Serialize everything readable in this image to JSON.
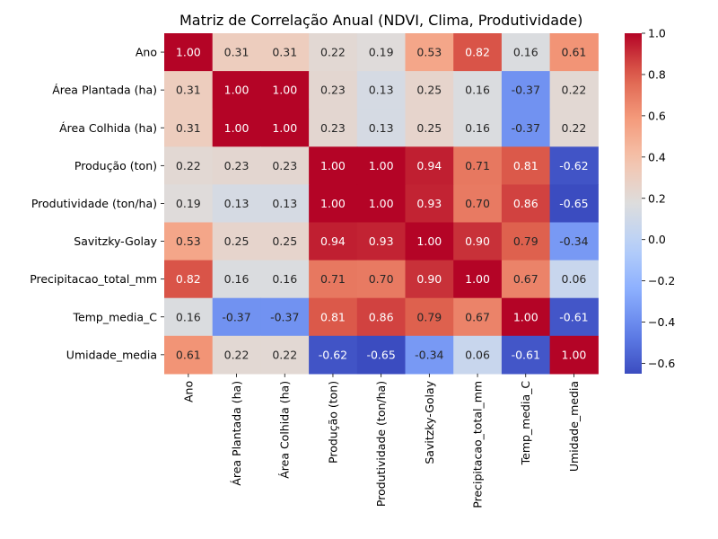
{
  "chart_data": {
    "type": "heatmap",
    "title": "Matriz de Correlação Anual (NDVI, Clima, Produtividade)",
    "row_labels": [
      "Ano",
      "Área Plantada (ha)",
      "Área Colhida (ha)",
      "Produção (ton)",
      "Produtividade (ton/ha)",
      "Savitzky-Golay",
      "Precipitacao_total_mm",
      "Temp_media_C",
      "Umidade_media"
    ],
    "col_labels": [
      "Ano",
      "Área Plantada (ha)",
      "Área Colhida (ha)",
      "Produção (ton)",
      "Produtividade (ton/ha)",
      "Savitzky-Golay",
      "Precipitacao_total_mm",
      "Temp_media_C",
      "Umidade_media"
    ],
    "values": [
      [
        1.0,
        0.31,
        0.31,
        0.22,
        0.19,
        0.53,
        0.82,
        0.16,
        0.61
      ],
      [
        0.31,
        1.0,
        1.0,
        0.23,
        0.13,
        0.25,
        0.16,
        -0.37,
        0.22
      ],
      [
        0.31,
        1.0,
        1.0,
        0.23,
        0.13,
        0.25,
        0.16,
        -0.37,
        0.22
      ],
      [
        0.22,
        0.23,
        0.23,
        1.0,
        1.0,
        0.94,
        0.71,
        0.81,
        -0.62
      ],
      [
        0.19,
        0.13,
        0.13,
        1.0,
        1.0,
        0.93,
        0.7,
        0.86,
        -0.65
      ],
      [
        0.53,
        0.25,
        0.25,
        0.94,
        0.93,
        1.0,
        0.9,
        0.79,
        -0.34
      ],
      [
        0.82,
        0.16,
        0.16,
        0.71,
        0.7,
        0.9,
        1.0,
        0.67,
        0.06
      ],
      [
        0.16,
        -0.37,
        -0.37,
        0.81,
        0.86,
        0.79,
        0.67,
        1.0,
        -0.61
      ],
      [
        0.61,
        0.22,
        0.22,
        -0.62,
        -0.65,
        -0.34,
        0.06,
        -0.61,
        1.0
      ]
    ],
    "value_format": "2 decimals",
    "colormap": "coolwarm",
    "vmin": -0.65,
    "vmax": 1.0,
    "colorbar": {
      "ticks": [
        1.0,
        0.8,
        0.6,
        0.4,
        0.2,
        0.0,
        -0.2,
        -0.4,
        -0.6
      ],
      "tick_labels": [
        "1.0",
        "0.8",
        "0.6",
        "0.4",
        "0.2",
        "0.0",
        "−0.2",
        "−0.4",
        "−0.6"
      ]
    }
  }
}
